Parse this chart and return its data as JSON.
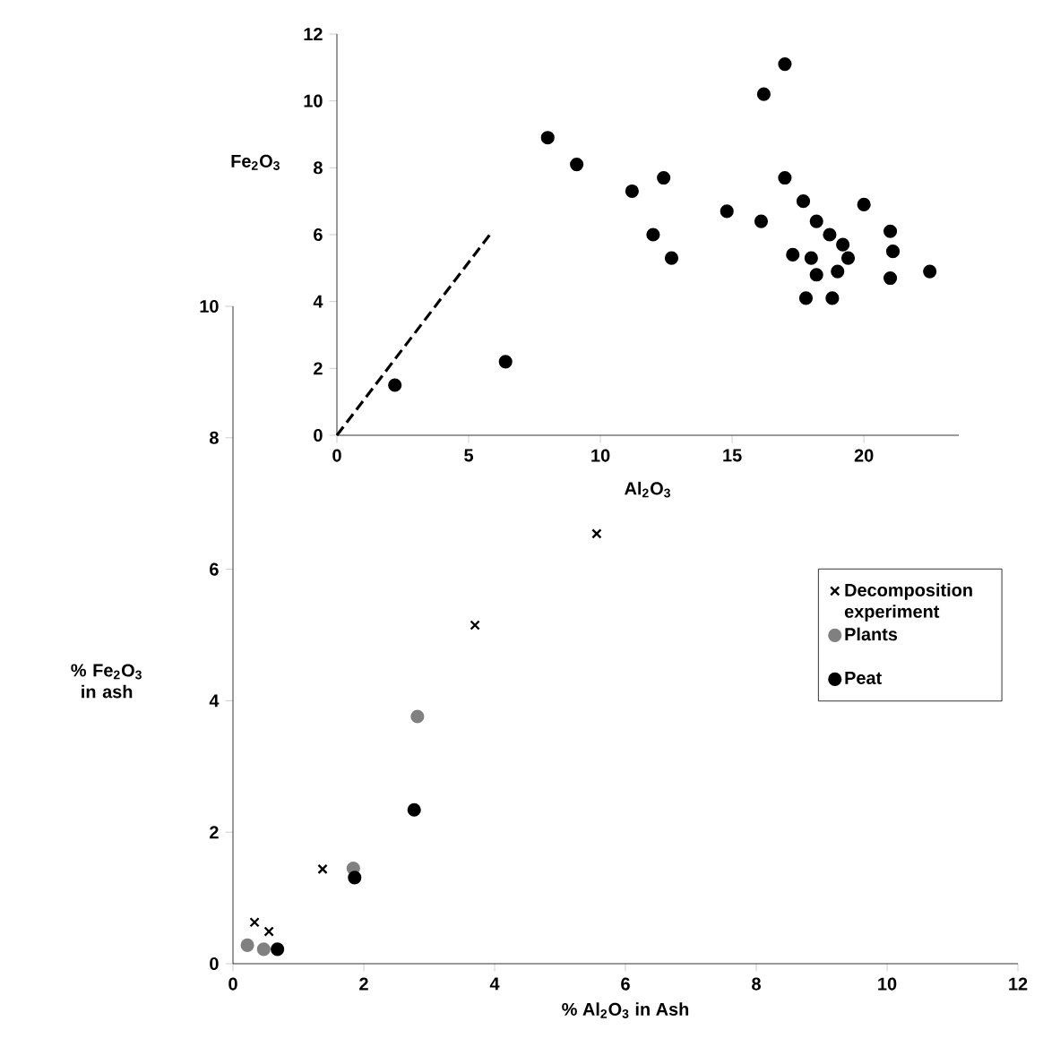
{
  "chart_data": [
    {
      "type": "scatter",
      "xlabel": "Al$_{2}$O$_{3}$",
      "ylabel": "Fe$_{2}$O$_{3}$",
      "xlim": [
        0,
        23.6
      ],
      "ylim": [
        0,
        12
      ],
      "xticks": [
        0,
        5,
        10,
        15,
        20
      ],
      "yticks": [
        0,
        2,
        4,
        6,
        8,
        10,
        12
      ],
      "grid": false,
      "legend": false,
      "series": [
        {
          "color": "#000000",
          "marker": "circle",
          "x": [
            2.2,
            6.4,
            8.0,
            9.1,
            11.2,
            12.4,
            12.0,
            12.7,
            14.8,
            16.1,
            16.2,
            17.0,
            17.0,
            17.7,
            18.2,
            18.7,
            19.2,
            19.4,
            19.0,
            17.3,
            18.0,
            18.2,
            17.8,
            18.8,
            20.0,
            21.0,
            21.1,
            21.0,
            22.5
          ],
          "values": [
            1.5,
            2.2,
            8.9,
            8.1,
            7.3,
            7.7,
            6.0,
            5.3,
            6.7,
            6.4,
            10.2,
            11.1,
            7.7,
            7.0,
            6.4,
            6.0,
            5.7,
            5.3,
            4.9,
            5.4,
            5.3,
            4.8,
            4.1,
            4.1,
            6.9,
            6.1,
            5.5,
            4.7,
            4.9
          ]
        },
        {
          "type": "line",
          "color": "#000000",
          "marker": "none",
          "line_style": "dashed",
          "x": [
            0,
            5.9
          ],
          "values": [
            0,
            6.1
          ]
        }
      ]
    },
    {
      "type": "scatter",
      "xlabel": "% Al$_{2}$O$_{3}$ in Ash",
      "ylabel": "% Fe$_{2}$O$_{3}$ in ash",
      "xlim": [
        0,
        12
      ],
      "ylim": [
        0,
        10
      ],
      "xticks": [
        0,
        2,
        4,
        6,
        8,
        10,
        12
      ],
      "yticks": [
        0,
        2,
        4,
        6,
        8,
        10
      ],
      "grid": false,
      "legend": "right",
      "series": [
        {
          "name": "Decomposition experiment",
          "color": "#000000",
          "marker": "cross",
          "x": [
            5.56,
            3.7,
            1.37,
            0.33,
            0.55
          ],
          "values": [
            6.54,
            5.15,
            1.44,
            0.63,
            0.49
          ]
        },
        {
          "name": "Plants",
          "color": "#808080",
          "marker": "circle",
          "x": [
            2.82,
            1.84,
            0.22,
            0.47
          ],
          "values": [
            3.76,
            1.45,
            0.28,
            0.22
          ]
        },
        {
          "name": "Peat",
          "color": "#000000",
          "marker": "circle",
          "x": [
            2.77,
            1.86,
            0.68
          ],
          "values": [
            2.34,
            1.31,
            0.22
          ]
        }
      ]
    }
  ]
}
